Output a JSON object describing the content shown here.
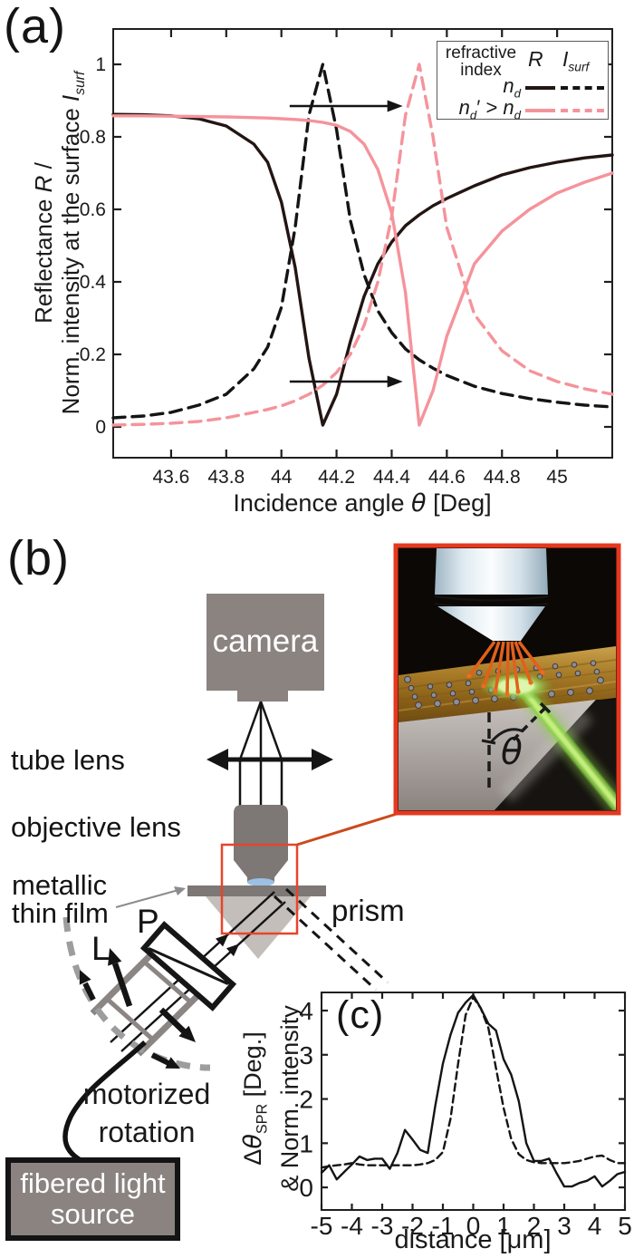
{
  "colors": {
    "black_curve": "#231513",
    "dash_black": "#141414",
    "pink": "#f5939b",
    "gray": "#8a8380",
    "bar_gray": "#7d7775",
    "prism_gray": "#c4beba",
    "blue_lens": "#9cc0e2",
    "red_box": "#e8442a",
    "connector": "#cc4a1a",
    "inset_border": "#e5391f",
    "arc_gray": "#9d9d9d",
    "gold": "#ab7d28",
    "green_beam": "#8bd04a"
  },
  "panel_a": {
    "label": "(a)",
    "xlabel_pre": "Incidence angle ",
    "xlabel_theta": "θ",
    "xlabel_post": " [Deg]",
    "ylabel1_pre": "Reflectance ",
    "ylabel1_it": "R",
    "ylabel1_post": " /",
    "ylabel2_pre": "Norm. intensity at the surface ",
    "ylabel2_it": "I",
    "ylabel2_sub": "surf",
    "legend": {
      "h1": "refractive",
      "h2": "index",
      "colR": "R",
      "colI": "I",
      "colIsub": "surf",
      "r1n": "n",
      "r1sub": "d",
      "r2n1": "n",
      "r2sub1": "d",
      "r2op": "′ > ",
      "r2n2": "n",
      "r2sub2": "d"
    }
  },
  "panel_b": {
    "label": "(b)",
    "camera": "camera",
    "tube_lens": "tube lens",
    "objective_lens": "objective lens",
    "metallic_line1": "metallic",
    "metallic_line2": "thin film",
    "prism": "prism",
    "polarizer": "P",
    "lens": "L",
    "motorized_line1": "motorized",
    "motorized_line2": "rotation",
    "source_line1": "fibered light",
    "source_line2": "source",
    "theta": "θ"
  },
  "panel_c": {
    "label": "(c)",
    "xlabel": "distance [μm]",
    "ylabel1_pre": "Δ",
    "ylabel1_theta": "θ",
    "ylabel1_sub": "SPR",
    "ylabel1_post": " [Deg.]",
    "ylabel2": "& Norm. intensity"
  },
  "chart_data": [
    {
      "id": "panel_a",
      "type": "line",
      "title": "",
      "xlabel": "Incidence angle θ [Deg]",
      "ylabel": "Reflectance R / Norm. intensity at the surface I_surf",
      "xlim": [
        43.39,
        45.2
      ],
      "ylim": [
        -0.085,
        1.0975
      ],
      "grid": false,
      "legend_position": "upper right",
      "xticks": [
        43.6,
        43.8,
        44,
        44.2,
        44.4,
        44.6,
        44.8,
        45
      ],
      "xtick_labels": [
        "43.6",
        "43.8",
        "44",
        "44.2",
        "44.4",
        "44.6",
        "44.8",
        "45"
      ],
      "yticks": [
        0,
        0.2,
        0.4,
        0.6,
        0.8,
        1
      ],
      "ytick_labels": [
        "0",
        "0.2",
        "0.4",
        "0.6",
        "0.8",
        "1"
      ],
      "x": [
        43.39,
        43.5,
        43.6,
        43.7,
        43.8,
        43.9,
        43.95,
        44.0,
        44.05,
        44.1,
        44.15,
        44.2,
        44.25,
        44.3,
        44.35,
        44.4,
        44.45,
        44.5,
        44.55,
        44.6,
        44.7,
        44.8,
        44.9,
        45.0,
        45.1,
        45.2
      ],
      "series": [
        {
          "name": "R, n_d",
          "style": "solid",
          "color": "#231513",
          "values": [
            0.862,
            0.861,
            0.858,
            0.85,
            0.83,
            0.78,
            0.73,
            0.62,
            0.44,
            0.19,
            0.005,
            0.09,
            0.235,
            0.36,
            0.45,
            0.51,
            0.555,
            0.585,
            0.61,
            0.63,
            0.665,
            0.695,
            0.715,
            0.73,
            0.742,
            0.75
          ]
        },
        {
          "name": "I_surf, n_d",
          "style": "dashed",
          "color": "#141414",
          "values": [
            0.025,
            0.03,
            0.04,
            0.06,
            0.09,
            0.16,
            0.22,
            0.33,
            0.55,
            0.86,
            1.0,
            0.82,
            0.57,
            0.42,
            0.32,
            0.26,
            0.215,
            0.185,
            0.162,
            0.142,
            0.112,
            0.092,
            0.078,
            0.068,
            0.06,
            0.055
          ]
        },
        {
          "name": "R, n_d' > n_d",
          "style": "solid",
          "color": "#f5939b",
          "values": [
            0.858,
            0.858,
            0.857,
            0.856,
            0.855,
            0.853,
            0.852,
            0.85,
            0.848,
            0.845,
            0.84,
            0.832,
            0.815,
            0.78,
            0.71,
            0.59,
            0.37,
            0.005,
            0.1,
            0.25,
            0.45,
            0.54,
            0.6,
            0.645,
            0.675,
            0.7
          ]
        },
        {
          "name": "I_surf, n_d' > n_d",
          "style": "dashed",
          "color": "#f5939b",
          "values": [
            0.005,
            0.007,
            0.01,
            0.015,
            0.025,
            0.04,
            0.048,
            0.058,
            0.072,
            0.09,
            0.115,
            0.15,
            0.2,
            0.28,
            0.4,
            0.58,
            0.86,
            1.0,
            0.8,
            0.55,
            0.31,
            0.21,
            0.155,
            0.125,
            0.105,
            0.09
          ]
        }
      ],
      "arrows": [
        {
          "x1": 44.03,
          "x2": 44.44,
          "y": 0.885
        },
        {
          "x1": 44.03,
          "x2": 44.44,
          "y": 0.125
        }
      ]
    },
    {
      "id": "panel_c",
      "type": "line",
      "title": "",
      "xlabel": "distance [μm]",
      "ylabel": "Δθ_SPR [Deg.] & Norm. intensity",
      "xlim": [
        -5,
        5
      ],
      "ylim": [
        -0.51,
        4.41
      ],
      "grid": false,
      "xticks": [
        -5,
        -4,
        -3,
        -2,
        -1,
        0,
        1,
        2,
        3,
        4,
        5
      ],
      "xtick_labels": [
        "-5",
        "-4",
        "-3",
        "-2",
        "-1",
        "0",
        "1",
        "2",
        "3",
        "4",
        "5"
      ],
      "yticks": [
        0,
        1,
        2,
        3,
        4
      ],
      "ytick_labels": [
        "0",
        "1",
        "2",
        "3",
        "4"
      ],
      "x": [
        -5,
        -4.75,
        -4.5,
        -4.25,
        -4,
        -3.75,
        -3.5,
        -3.25,
        -3,
        -2.75,
        -2.5,
        -2.25,
        -2,
        -1.75,
        -1.5,
        -1.25,
        -1,
        -0.75,
        -0.5,
        -0.25,
        0,
        0.25,
        0.5,
        0.75,
        1,
        1.25,
        1.5,
        1.75,
        2,
        2.25,
        2.5,
        2.75,
        3,
        3.25,
        3.5,
        3.75,
        4,
        4.25,
        4.5,
        4.75,
        5
      ],
      "series": [
        {
          "name": "Δθ_SPR",
          "style": "solid",
          "color": "#141414",
          "values": [
            0.33,
            0.5,
            0.18,
            0.35,
            0.52,
            0.7,
            0.62,
            0.65,
            0.65,
            0.42,
            0.78,
            1.3,
            1.08,
            0.85,
            0.78,
            1.85,
            2.8,
            3.45,
            3.95,
            4.18,
            4.35,
            4.05,
            3.7,
            3.55,
            2.9,
            2.55,
            1.95,
            1.0,
            0.6,
            0.6,
            0.65,
            0.32,
            0.02,
            0.02,
            0.1,
            0.15,
            0.25,
            0.02,
            0.15,
            0.3,
            0.35
          ]
        },
        {
          "name": "Norm. intensity",
          "style": "dashed",
          "color": "#141414",
          "values": [
            0.45,
            0.48,
            0.5,
            0.52,
            0.55,
            0.52,
            0.5,
            0.5,
            0.5,
            0.5,
            0.5,
            0.5,
            0.5,
            0.52,
            0.55,
            0.62,
            0.8,
            1.55,
            2.8,
            3.9,
            4.3,
            4.05,
            3.6,
            2.7,
            1.8,
            1.1,
            0.75,
            0.62,
            0.57,
            0.55,
            0.55,
            0.55,
            0.55,
            0.57,
            0.6,
            0.65,
            0.7,
            0.72,
            0.62,
            0.55,
            0.55
          ]
        }
      ]
    }
  ]
}
